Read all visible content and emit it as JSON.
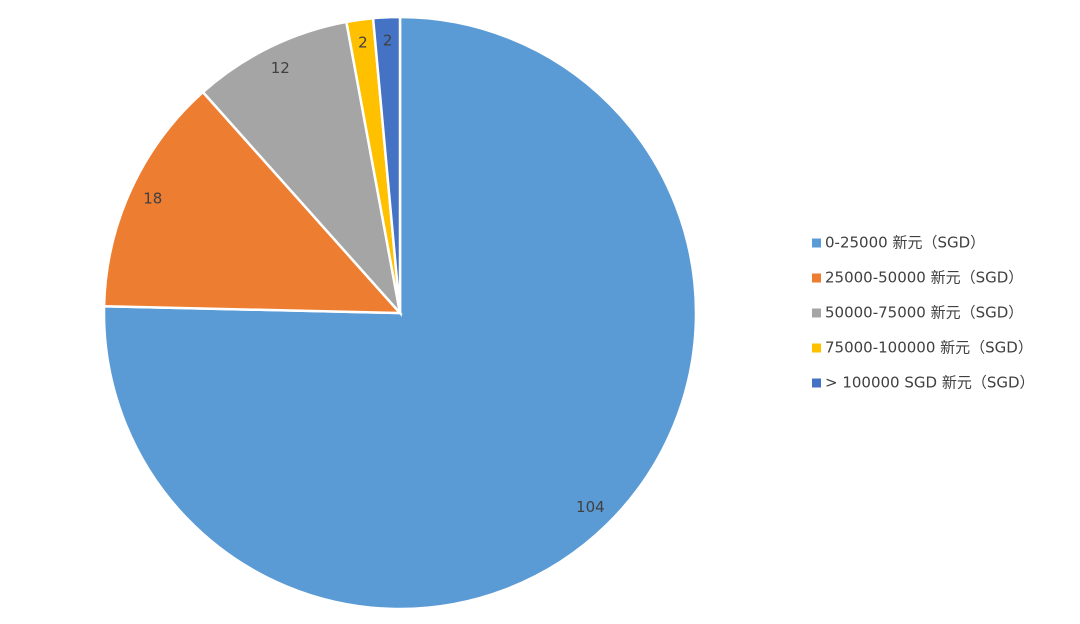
{
  "chart_data": {
    "type": "pie",
    "categories": [
      "0-25000 新元（SGD）",
      "25000-50000 新元（SGD）",
      "50000-75000 新元（SGD）",
      "75000-100000 新元（SGD）",
      "> 100000 SGD 新元（SGD）"
    ],
    "values": [
      104,
      18,
      12,
      2,
      2
    ],
    "colors": [
      "#5b9bd5",
      "#ed7d31",
      "#a5a5a5",
      "#ffc000",
      "#4472c4"
    ],
    "legend": "right"
  }
}
